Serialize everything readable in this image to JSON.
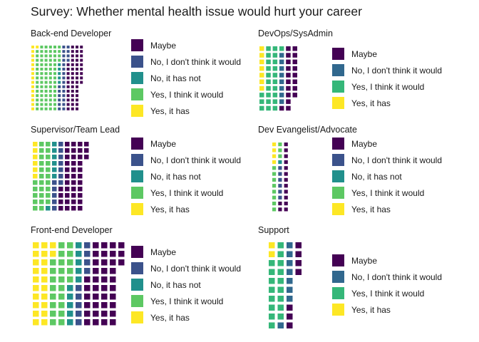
{
  "title": "Survey: Whether mental health issue would hurt your career",
  "colors": {
    "Maybe": "#440154",
    "No, I don't think it would": "#3B528B",
    "No, it has not": "#21908C",
    "Yes, I think it would": "#5DC863",
    "Yes, it has": "#FDE725"
  },
  "chart_data": [
    {
      "type": "waffle",
      "title": "Back-end Developer",
      "legend": [
        "Maybe",
        "No, I don't think it would",
        "No, it has not",
        "Yes, I think it would",
        "Yes, it has"
      ],
      "values": [
        50,
        25,
        5,
        78,
        16
      ]
    },
    {
      "type": "waffle",
      "title": "DevOps/SysAdmin",
      "legend": [
        "Maybe",
        "No, I don't think it would",
        "Yes, I think it would",
        "Yes, it has"
      ],
      "legend_colors": [
        "#440154",
        "#31688E",
        "#35B779",
        "#FDE725"
      ],
      "values": [
        19,
        8,
        24,
        7
      ]
    },
    {
      "type": "waffle",
      "title": "Supervisor/Team Lead",
      "legend": [
        "Maybe",
        "No, I don't think it would",
        "No, it has not",
        "Yes, I think it would",
        "Yes, it has"
      ],
      "values": [
        40,
        12,
        7,
        26,
        6
      ]
    },
    {
      "type": "waffle",
      "title": "Dev Evangelist/Advocate",
      "legend": [
        "Maybe",
        "No, I don't think it would",
        "No, it has not",
        "Yes, I think it would",
        "Yes, it has"
      ],
      "values": [
        14,
        6,
        1,
        11,
        4
      ]
    },
    {
      "type": "waffle",
      "title": "Front-end Developer",
      "legend": [
        "Maybe",
        "No, I don't think it would",
        "No, it has not",
        "Yes, I think it would",
        "Yes, it has"
      ],
      "values": [
        39,
        9,
        10,
        23,
        22
      ]
    },
    {
      "type": "waffle",
      "title": "Support",
      "legend": [
        "Maybe",
        "No, I don't think it would",
        "Yes, I think it would",
        "Yes, it has"
      ],
      "legend_colors": [
        "#440154",
        "#31688E",
        "#35B779",
        "#FDE725"
      ],
      "values": [
        7,
        8,
        17,
        2
      ]
    }
  ]
}
